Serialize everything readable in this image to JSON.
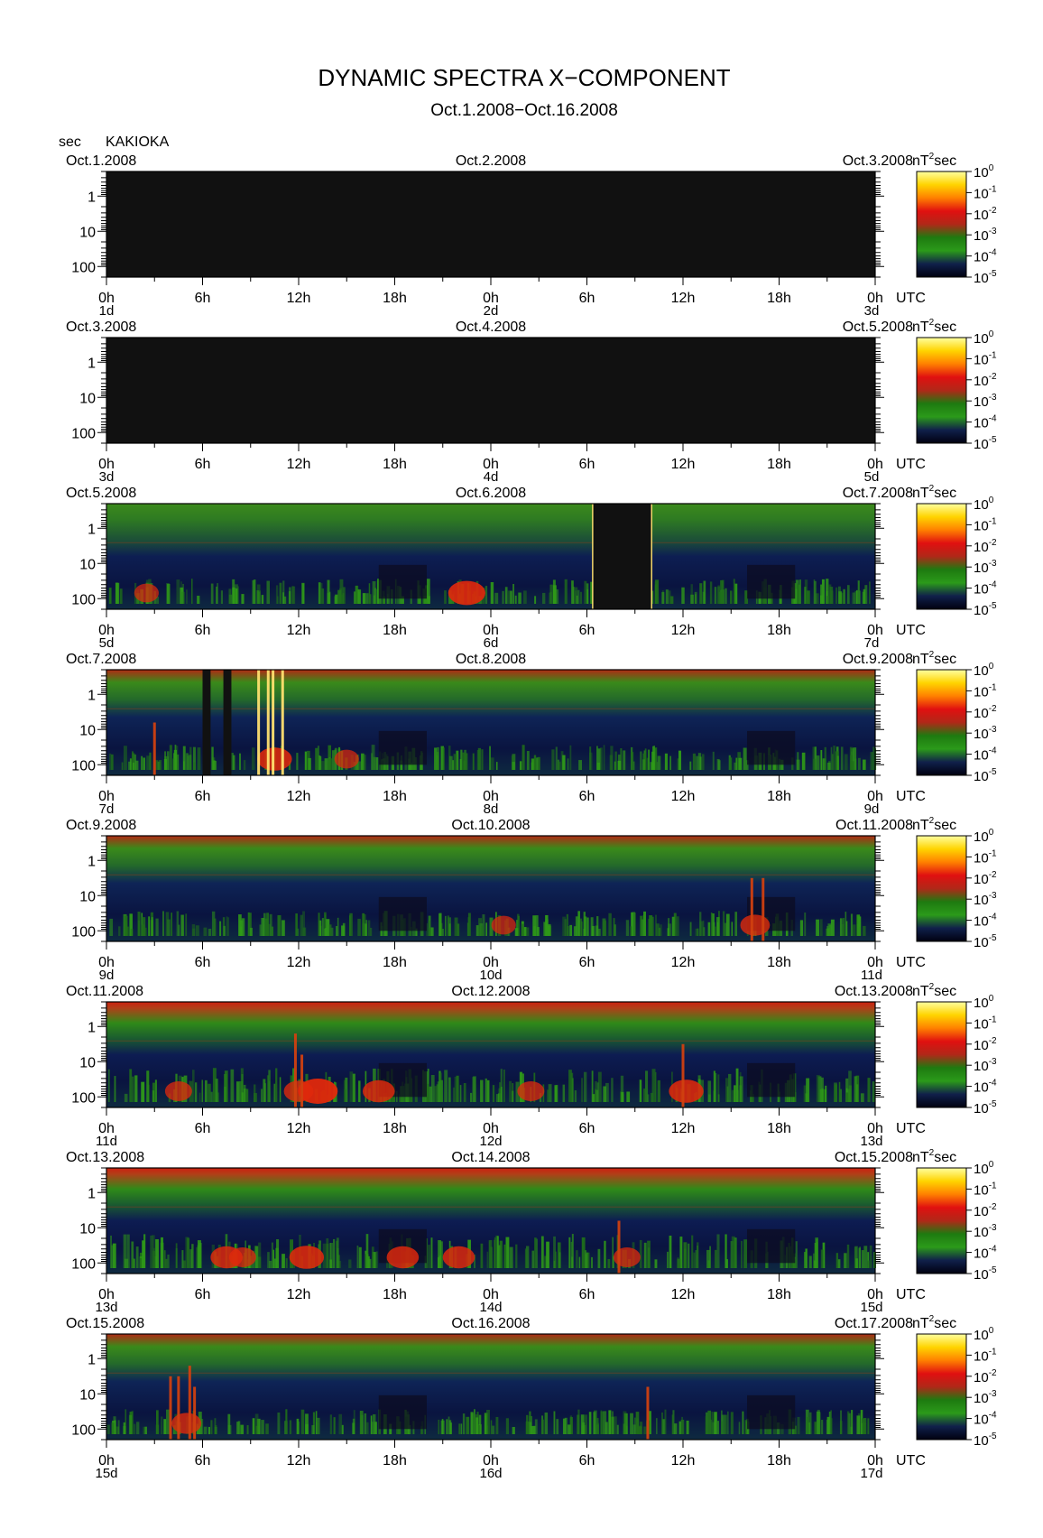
{
  "title": "DYNAMIC SPECTRA X−COMPONENT",
  "subtitle": "Oct.1.2008−Oct.16.2008",
  "y_unit": "sec",
  "station": "KAKIOKA",
  "x_unit": "UTC",
  "colorbar_unit_base": "nT",
  "colorbar_unit_exp": "2",
  "colorbar_unit_suffix": "sec",
  "colorbar_base": "10",
  "colorbar_exponents": [
    "0",
    "-1",
    "-2",
    "-3",
    "-4",
    "-5"
  ],
  "y_tick_labels": [
    "1",
    "10",
    "100"
  ],
  "x_tick_labels": [
    "0h",
    "6h",
    "12h",
    "18h",
    "0h",
    "6h",
    "12h",
    "18h",
    "0h"
  ],
  "colors": {
    "background": "#ffffff",
    "no_data": "#111111",
    "colorbar": [
      "#ffffa0",
      "#ffd400",
      "#ff8000",
      "#e01010",
      "#b02818",
      "#1e7a10",
      "#2b9a1a",
      "#10204a",
      "#000010"
    ]
  },
  "chart_data": {
    "type": "heatmap",
    "title": "DYNAMIC SPECTRA X−COMPONENT",
    "subtitle": "Oct.1.2008−Oct.16.2008",
    "ylabel": "sec",
    "xlabel": "UTC",
    "y_scale": "log",
    "ylim": [
      0.2,
      200
    ],
    "x_range_hours": [
      0,
      48
    ],
    "color_scale": "log",
    "color_range": [
      1e-05,
      1
    ],
    "colorbar_unit": "nT^2 sec",
    "panels": [
      {
        "start": "Oct.1.2008",
        "mid": "Oct.2.2008",
        "end": "Oct.3.2008",
        "day_start": "1d",
        "day_mid": "2d",
        "day_end": "3d",
        "level": 0,
        "gaps": [
          [
            0,
            48
          ]
        ],
        "bursts": [],
        "spikes": []
      },
      {
        "start": "Oct.3.2008",
        "mid": "Oct.4.2008",
        "end": "Oct.5.2008",
        "day_start": "3d",
        "day_mid": "4d",
        "day_end": "5d",
        "level": 0,
        "gaps": [
          [
            0,
            48
          ]
        ],
        "bursts": [],
        "spikes": []
      },
      {
        "start": "Oct.5.2008",
        "mid": "Oct.6.2008",
        "end": "Oct.7.2008",
        "day_start": "5d",
        "day_mid": "6d",
        "day_end": "7d",
        "level": 1,
        "gaps": [
          [
            30.4,
            34.0
          ]
        ],
        "bursts": [
          [
            22.5,
            0.9
          ],
          [
            2.5,
            0.4
          ]
        ],
        "spikes": [
          [
            30.4,
            1
          ],
          [
            34.0,
            1
          ]
        ]
      },
      {
        "start": "Oct.7.2008",
        "mid": "Oct.8.2008",
        "end": "Oct.9.2008",
        "day_start": "7d",
        "day_mid": "8d",
        "day_end": "9d",
        "level": 2,
        "gaps": [
          [
            6.0,
            6.5
          ],
          [
            7.3,
            7.8
          ]
        ],
        "bursts": [
          [
            15.0,
            0.4
          ],
          [
            10.5,
            0.8
          ]
        ],
        "spikes": [
          [
            9.5,
            1
          ],
          [
            10.1,
            1
          ],
          [
            10.4,
            1
          ],
          [
            11.0,
            1
          ],
          [
            3.0,
            0.5
          ]
        ]
      },
      {
        "start": "Oct.9.2008",
        "mid": "Oct.10.2008",
        "end": "Oct.11.2008",
        "day_start": "9d",
        "day_mid": "10d",
        "day_end": "11d",
        "level": 2,
        "gaps": [],
        "bursts": [
          [
            40.5,
            0.6
          ],
          [
            24.8,
            0.4
          ]
        ],
        "spikes": [
          [
            40.3,
            0.6
          ],
          [
            41.0,
            0.6
          ]
        ]
      },
      {
        "start": "Oct.11.2008",
        "mid": "Oct.12.2008",
        "end": "Oct.13.2008",
        "day_start": "11d",
        "day_mid": "12d",
        "day_end": "13d",
        "level": 3,
        "gaps": [],
        "bursts": [
          [
            13.2,
            1
          ],
          [
            12.0,
            0.6
          ],
          [
            17.0,
            0.7
          ],
          [
            36.2,
            0.8
          ],
          [
            4.5,
            0.5
          ],
          [
            26.5,
            0.5
          ]
        ],
        "spikes": [
          [
            11.8,
            0.7
          ],
          [
            12.2,
            0.5
          ],
          [
            36.0,
            0.6
          ]
        ]
      },
      {
        "start": "Oct.13.2008",
        "mid": "Oct.14.2008",
        "end": "Oct.15.2008",
        "day_start": "13d",
        "day_mid": "14d",
        "day_end": "15d",
        "level": 3,
        "gaps": [],
        "bursts": [
          [
            7.5,
            0.7
          ],
          [
            12.5,
            0.8
          ],
          [
            18.5,
            0.7
          ],
          [
            22.0,
            0.7
          ],
          [
            8.5,
            0.5
          ],
          [
            32.5,
            0.5
          ]
        ],
        "spikes": [
          [
            32.0,
            0.5
          ]
        ]
      },
      {
        "start": "Oct.15.2008",
        "mid": "Oct.16.2008",
        "end": "Oct.17.2008",
        "day_start": "15d",
        "day_mid": "16d",
        "day_end": "17d",
        "level": 2,
        "gaps": [],
        "bursts": [
          [
            5.0,
            0.6
          ]
        ],
        "spikes": [
          [
            4.0,
            0.6
          ],
          [
            4.5,
            0.6
          ],
          [
            5.2,
            0.7
          ],
          [
            5.5,
            0.5
          ],
          [
            33.8,
            0.5
          ]
        ]
      }
    ]
  }
}
